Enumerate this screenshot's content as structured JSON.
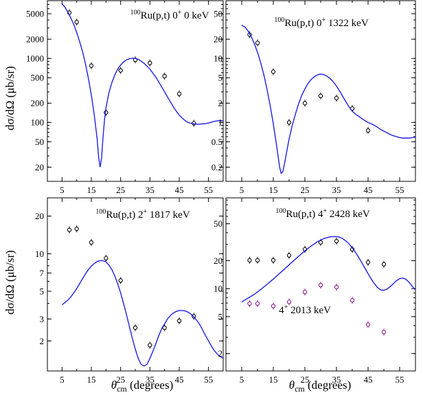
{
  "figure": {
    "ylabel_left": "dσ/dΩ (μb/sr)",
    "xlabel": "θcm (degrees)",
    "xlabel_main": "θ",
    "xlabel_sub": "cm",
    "xlabel_rest": " (degrees)"
  },
  "colors": {
    "theory": "#1f1fe8",
    "ground_data": "#000000",
    "excited_data": "#8b1a8b"
  },
  "chart_data": [
    {
      "type": "scatter",
      "title_sup": "100",
      "title": "Ru(p,t) 0+ 0 keV",
      "title_main": "Ru(p,t) 0",
      "title_spin": "+",
      "title_energy": " 0 keV",
      "xlim": [
        0,
        60
      ],
      "ylim": [
        12,
        8000
      ],
      "yscale": "log",
      "xticks": [
        5,
        15,
        25,
        35,
        45,
        55
      ],
      "xticklabels": [
        "5",
        "15",
        "25",
        "35",
        "45",
        "55"
      ],
      "yticks": [
        20,
        50,
        100,
        200,
        500,
        1000,
        2000,
        5000
      ],
      "yticklabels": [
        "20",
        "50",
        "100",
        "200",
        "500",
        "1000",
        "2000",
        "5000"
      ],
      "series": [
        {
          "kind": "data",
          "x": [
            7.5,
            10,
            15,
            20,
            25,
            30,
            35,
            40,
            45,
            50
          ],
          "y": [
            5200,
            3700,
            770,
            143,
            650,
            950,
            850,
            530,
            280,
            97
          ]
        },
        {
          "kind": "theory",
          "x": [
            5,
            6,
            7,
            8,
            9,
            10,
            11,
            12,
            13,
            14,
            15,
            16,
            17,
            17.5,
            18,
            18.5,
            19,
            19.5,
            20,
            21,
            22,
            23,
            24,
            25,
            26,
            27,
            28,
            29,
            30,
            31,
            32,
            33,
            34,
            35,
            36,
            37,
            38,
            39,
            40,
            41,
            42,
            43,
            44,
            45,
            46,
            47,
            48,
            49,
            50,
            51,
            52,
            53,
            54,
            55,
            56,
            57,
            58,
            59,
            60
          ],
          "y": [
            7200,
            6300,
            5300,
            4300,
            3400,
            2550,
            1850,
            1280,
            820,
            490,
            270,
            130,
            55,
            28,
            20,
            28,
            60,
            110,
            170,
            290,
            420,
            550,
            680,
            790,
            880,
            950,
            990,
            1010,
            1000,
            970,
            910,
            840,
            760,
            680,
            590,
            510,
            430,
            360,
            300,
            250,
            210,
            175,
            150,
            130,
            117,
            107,
            100,
            97,
            95,
            94,
            94,
            95,
            96,
            98,
            101,
            104,
            106,
            107,
            106
          ]
        }
      ]
    },
    {
      "type": "scatter",
      "title_sup": "100",
      "title": "Ru(p,t) 0+ 1322 keV",
      "title_main": "Ru(p,t) 0",
      "title_spin": "+",
      "title_energy": " 1322 keV",
      "xlim": [
        0,
        60
      ],
      "ylim": [
        0.12,
        80
      ],
      "yscale": "log",
      "xticks": [
        5,
        15,
        25,
        35,
        45,
        55
      ],
      "xticklabels": [
        "5",
        "15",
        "25",
        "35",
        "45",
        "55"
      ],
      "yticks": [
        0.2,
        0.5,
        1,
        2,
        5,
        10,
        20,
        50
      ],
      "yticklabels": [
        "0.2",
        "0.5",
        "1",
        "2",
        "5",
        "10",
        "20",
        "50"
      ],
      "series": [
        {
          "kind": "data",
          "x": [
            7.5,
            10,
            15,
            20,
            25,
            30,
            35,
            40,
            45
          ],
          "y": [
            23.5,
            17.5,
            6.2,
            1.0,
            2.0,
            2.6,
            2.4,
            1.65,
            0.75
          ]
        },
        {
          "kind": "theory",
          "x": [
            5,
            6,
            7,
            8,
            9,
            10,
            11,
            12,
            13,
            14,
            15,
            16,
            17,
            17.5,
            18,
            18.5,
            19,
            20,
            21,
            22,
            23,
            24,
            25,
            26,
            27,
            28,
            29,
            30,
            31,
            32,
            33,
            34,
            35,
            36,
            37,
            38,
            39,
            40,
            41,
            42,
            43,
            44,
            45,
            46,
            47,
            48,
            49,
            50,
            51,
            52,
            53,
            54,
            55,
            56,
            57,
            58,
            59,
            60
          ],
          "y": [
            33,
            31,
            27,
            22,
            17,
            12.5,
            8.6,
            5.6,
            3.3,
            1.85,
            0.95,
            0.45,
            0.2,
            0.16,
            0.17,
            0.22,
            0.3,
            0.55,
            0.9,
            1.35,
            1.95,
            2.65,
            3.35,
            4.05,
            4.7,
            5.2,
            5.55,
            5.7,
            5.6,
            5.3,
            4.85,
            4.3,
            3.7,
            3.1,
            2.55,
            2.1,
            1.75,
            1.5,
            1.35,
            1.25,
            1.15,
            1.07,
            1.0,
            0.95,
            0.9,
            0.84,
            0.78,
            0.73,
            0.69,
            0.65,
            0.62,
            0.6,
            0.58,
            0.57,
            0.57,
            0.57,
            0.58,
            0.59
          ]
        }
      ]
    },
    {
      "type": "scatter",
      "title_sup": "100",
      "title": "Ru(p,t) 2+ 1817 keV",
      "title_main": "Ru(p,t) 2",
      "title_spin": "+",
      "title_energy": " 1817 keV",
      "xlim": [
        0,
        60
      ],
      "ylim": [
        1.15,
        28
      ],
      "yscale": "log",
      "xticks": [
        5,
        15,
        25,
        35,
        45,
        55
      ],
      "xticklabels": [
        "5",
        "15",
        "25",
        "35",
        "45",
        "55"
      ],
      "yticks": [
        2,
        3,
        5,
        7,
        10,
        20
      ],
      "yticklabels": [
        "2",
        "3",
        "5",
        "7",
        "10",
        "20"
      ],
      "series": [
        {
          "kind": "data",
          "x": [
            7.5,
            10,
            15,
            20,
            25,
            30,
            35,
            40,
            45,
            50
          ],
          "y": [
            15.5,
            15.8,
            12.3,
            9.2,
            6.1,
            2.55,
            1.85,
            2.55,
            2.9,
            3.15
          ]
        },
        {
          "kind": "theory",
          "x": [
            5,
            6,
            7,
            8,
            9,
            10,
            11,
            12,
            13,
            14,
            15,
            16,
            17,
            18,
            19,
            20,
            21,
            22,
            23,
            24,
            25,
            26,
            27,
            28,
            29,
            30,
            31,
            32,
            33,
            34,
            35,
            36,
            37,
            38,
            39,
            40,
            41,
            42,
            43,
            44,
            45,
            46,
            47,
            48,
            49,
            50,
            51,
            52,
            53,
            54,
            55,
            56,
            57,
            58,
            59,
            60
          ],
          "y": [
            3.9,
            4.05,
            4.25,
            4.5,
            4.85,
            5.25,
            5.75,
            6.3,
            6.9,
            7.45,
            7.95,
            8.35,
            8.65,
            8.8,
            8.8,
            8.6,
            8.1,
            7.45,
            6.65,
            5.75,
            4.85,
            4.0,
            3.25,
            2.6,
            2.1,
            1.72,
            1.45,
            1.3,
            1.26,
            1.3,
            1.45,
            1.65,
            1.9,
            2.2,
            2.5,
            2.75,
            3.0,
            3.2,
            3.35,
            3.45,
            3.5,
            3.5,
            3.48,
            3.4,
            3.28,
            3.12,
            2.92,
            2.7,
            2.45,
            2.2,
            2.0,
            1.82,
            1.67,
            1.57,
            1.5,
            1.45
          ]
        }
      ]
    },
    {
      "type": "scatter",
      "title_sup": "100",
      "title": "Ru(p,t) 4+ 2428 keV",
      "title_main": "Ru(p,t) 4",
      "title_spin": "+",
      "title_energy": " 2428 keV",
      "annotation": "4+ 2013 keV",
      "annotation_main": "4",
      "annotation_spin": "+",
      "annotation_energy": " 2013 keV",
      "xlim": [
        0,
        60
      ],
      "ylim": [
        1.3,
        95
      ],
      "yscale": "log",
      "xticks": [
        5,
        15,
        25,
        35,
        45,
        55
      ],
      "xticklabels": [
        "5",
        "15",
        "25",
        "35",
        "45",
        "55"
      ],
      "yticks": [
        2,
        5,
        10,
        20,
        50
      ],
      "yticklabels": [
        "2",
        "5",
        "10",
        "20",
        "50"
      ],
      "series": [
        {
          "kind": "data",
          "x": [
            7.5,
            10,
            15,
            20,
            25,
            30,
            35,
            40,
            45,
            50
          ],
          "y": [
            20.2,
            20.2,
            20.2,
            22.8,
            26.5,
            31.5,
            32.5,
            26.5,
            19.2,
            18.3
          ]
        },
        {
          "kind": "data-excited",
          "x": [
            7.5,
            10,
            15,
            20,
            25,
            30,
            35,
            40,
            45,
            50
          ],
          "y": [
            6.9,
            6.9,
            6.5,
            7.2,
            9.2,
            10.9,
            10.4,
            7.5,
            4.1,
            3.4
          ]
        },
        {
          "kind": "theory",
          "x": [
            5,
            7,
            9,
            11,
            13,
            15,
            17,
            19,
            21,
            23,
            25,
            27,
            29,
            31,
            33,
            35,
            36,
            37,
            38,
            39,
            40,
            41,
            42,
            43,
            44,
            45,
            46,
            47,
            48,
            49,
            50,
            51,
            52,
            53,
            54,
            55,
            56,
            57,
            58,
            59,
            60
          ],
          "y": [
            7.2,
            7.9,
            8.7,
            9.8,
            11.1,
            12.7,
            14.6,
            16.8,
            19.4,
            22.3,
            25.5,
            28.8,
            32.0,
            34.6,
            36.2,
            36.4,
            35.8,
            34.5,
            32.6,
            30.2,
            27.5,
            24.6,
            21.8,
            19.1,
            16.6,
            14.5,
            12.7,
            11.3,
            10.3,
            9.7,
            9.6,
            9.9,
            10.5,
            11.3,
            12.2,
            12.8,
            13.0,
            12.6,
            11.7,
            10.6,
            9.7
          ]
        }
      ]
    }
  ]
}
